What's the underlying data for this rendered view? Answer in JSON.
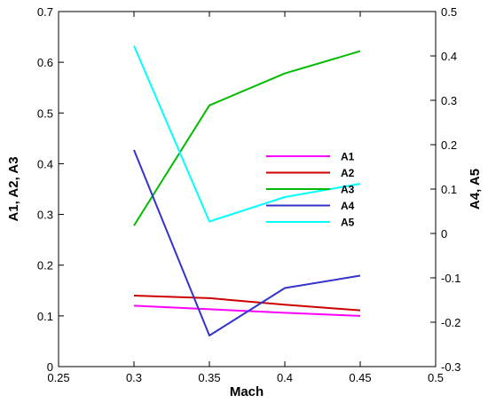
{
  "chart_data": {
    "type": "line",
    "title": "",
    "xlabel": "Mach",
    "ylabel_left": "A1, A2, A3",
    "ylabel_right": "A4, A5",
    "xlim": [
      0.25,
      0.5
    ],
    "ylim_left": [
      0,
      0.7
    ],
    "ylim_right": [
      -0.3,
      0.5
    ],
    "x_ticks": [
      0.25,
      0.3,
      0.35,
      0.4,
      0.45,
      0.5
    ],
    "y_left_ticks": [
      0,
      0.1,
      0.2,
      0.3,
      0.4,
      0.5,
      0.6,
      0.7
    ],
    "y_right_ticks": [
      -0.3,
      -0.2,
      -0.1,
      0,
      0.1,
      0.2,
      0.3,
      0.4,
      0.5
    ],
    "x_tick_labels": [
      "0.25",
      "0.3",
      "0.35",
      "0.4",
      "0.45",
      "0.5"
    ],
    "y_left_tick_labels": [
      "0",
      "0.1",
      "0.2",
      "0.3",
      "0.4",
      "0.5",
      "0.6",
      "0.7"
    ],
    "y_right_tick_labels": [
      "-0.3",
      "-0.2",
      "-0.1",
      "0",
      "0.1",
      "0.2",
      "0.3",
      "0.4",
      "0.5"
    ],
    "grid": false,
    "legend_position": "center-right",
    "series": [
      {
        "name": "A1",
        "axis": "left",
        "color": "#ff00ff",
        "x": [
          0.3,
          0.35,
          0.4,
          0.45
        ],
        "values": [
          0.12,
          0.113,
          0.106,
          0.1
        ]
      },
      {
        "name": "A2",
        "axis": "left",
        "color": "#cc0000",
        "x": [
          0.3,
          0.35,
          0.4,
          0.45
        ],
        "values": [
          0.14,
          0.135,
          0.122,
          0.111
        ]
      },
      {
        "name": "A3",
        "axis": "left",
        "color": "#00bb00",
        "x": [
          0.3,
          0.35,
          0.4,
          0.45
        ],
        "values": [
          0.278,
          0.515,
          0.578,
          0.622
        ]
      },
      {
        "name": "A4",
        "axis": "right",
        "color": "#3333cc",
        "x": [
          0.3,
          0.35,
          0.4,
          0.45
        ],
        "values": [
          0.188,
          -0.23,
          -0.123,
          -0.095
        ]
      },
      {
        "name": "A5",
        "axis": "right",
        "color": "#00ffff",
        "x": [
          0.3,
          0.35,
          0.4,
          0.45
        ],
        "values": [
          0.423,
          0.027,
          0.082,
          0.112
        ]
      }
    ]
  }
}
